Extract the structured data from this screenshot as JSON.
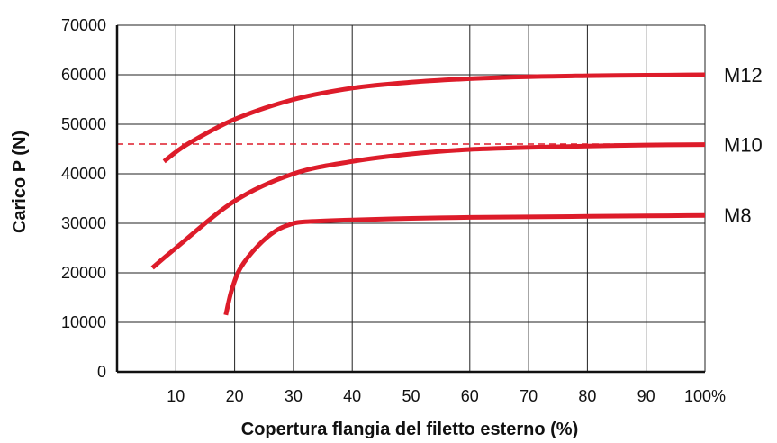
{
  "chart_data": {
    "type": "line",
    "title": "",
    "xlabel": "Copertura flangia del filetto esterno (%)",
    "ylabel": "Carico P (N)",
    "xlim": [
      0,
      100
    ],
    "ylim": [
      0,
      70000
    ],
    "x_ticks": [
      10,
      20,
      30,
      40,
      50,
      60,
      70,
      80,
      90,
      100
    ],
    "x_tick_labels": [
      "10",
      "20",
      "30",
      "40",
      "50",
      "60",
      "70",
      "80",
      "90",
      "100%"
    ],
    "y_ticks": [
      0,
      10000,
      20000,
      30000,
      40000,
      50000,
      60000,
      70000
    ],
    "y_tick_labels": [
      "0",
      "10000",
      "20000",
      "30000",
      "40000",
      "50000",
      "60000",
      "70000"
    ],
    "grid": true,
    "line_color": "#dd1c2a",
    "series": [
      {
        "name": "M12",
        "x": [
          8,
          12,
          20,
          30,
          40,
          50,
          60,
          70,
          80,
          90,
          100
        ],
        "y": [
          42500,
          46000,
          51000,
          55000,
          57300,
          58500,
          59200,
          59600,
          59800,
          59900,
          60000
        ]
      },
      {
        "name": "M10",
        "x": [
          6,
          10,
          20,
          30,
          40,
          50,
          60,
          70,
          80,
          90,
          100
        ],
        "y": [
          21000,
          25000,
          34500,
          40000,
          42500,
          44000,
          44900,
          45300,
          45600,
          45800,
          45900
        ]
      },
      {
        "name": "M8",
        "x": [
          18.5,
          19.5,
          21,
          24,
          27,
          29.5,
          32,
          40,
          50,
          60,
          70,
          80,
          90,
          100
        ],
        "y": [
          11500,
          16500,
          21000,
          25500,
          28500,
          29800,
          30300,
          30700,
          31000,
          31200,
          31300,
          31400,
          31500,
          31600
        ]
      }
    ],
    "reference_line": {
      "y": 46000,
      "style": "dashed"
    }
  }
}
